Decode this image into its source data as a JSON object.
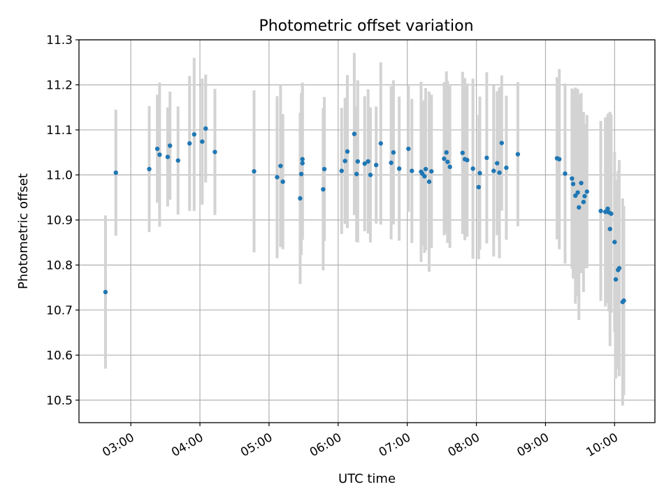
{
  "chart_data": {
    "type": "scatter",
    "title": "Photometric offset variation",
    "xlabel": "UTC time",
    "ylabel": "Photometric offset",
    "ylim": [
      10.45,
      11.3
    ],
    "xlim": [
      "02:15",
      "10:35"
    ],
    "yticks": [
      "10.5",
      "10.6",
      "10.7",
      "10.8",
      "10.9",
      "11.0",
      "11.1",
      "11.2",
      "11.3"
    ],
    "xticks": [
      "03:00",
      "04:00",
      "05:00",
      "06:00",
      "07:00",
      "08:00",
      "09:00",
      "10:00"
    ],
    "grid": true,
    "colors": {
      "points": "#1f77b4",
      "errorbars": "#d3d3d3",
      "grid": "#b0b0b0"
    },
    "series": [
      {
        "x": [
          "02:38",
          "02:47",
          "03:16",
          "03:23",
          "03:25",
          "03:32",
          "03:34",
          "03:41",
          "03:51",
          "03:55",
          "04:02",
          "04:05",
          "04:13",
          "04:47",
          "05:07",
          "05:10",
          "05:12",
          "05:27",
          "05:28",
          "05:29",
          "05:29",
          "05:47",
          "05:48",
          "06:03",
          "06:06",
          "06:08",
          "06:14",
          "06:16",
          "06:17",
          "06:23",
          "06:26",
          "06:28",
          "06:33",
          "06:37",
          "06:46",
          "06:48",
          "06:53",
          "07:01",
          "07:04",
          "07:12",
          "07:13",
          "07:15",
          "07:16",
          "07:19",
          "07:21",
          "07:32",
          "07:34",
          "07:35",
          "07:37",
          "07:48",
          "07:50",
          "07:52",
          "07:57",
          "08:02",
          "08:03",
          "08:09",
          "08:15",
          "08:18",
          "08:20",
          "08:22",
          "08:26",
          "08:36",
          "09:10",
          "09:12",
          "09:17",
          "09:23",
          "09:24",
          "09:26",
          "09:28",
          "09:29",
          "09:31",
          "09:33",
          "09:34",
          "09:36",
          "09:48",
          "09:52",
          "09:54",
          "09:55",
          "09:56",
          "09:57",
          "10:00",
          "10:01",
          "10:03",
          "10:04",
          "10:07",
          "10:08"
        ],
        "y": [
          10.74,
          11.005,
          11.013,
          11.058,
          11.045,
          11.04,
          11.065,
          11.032,
          11.07,
          11.09,
          11.074,
          11.103,
          11.051,
          11.008,
          10.995,
          11.02,
          10.985,
          10.948,
          11.002,
          11.026,
          11.035,
          10.968,
          11.013,
          11.009,
          11.031,
          11.052,
          11.091,
          11.002,
          11.03,
          11.025,
          11.03,
          11.0,
          11.022,
          11.07,
          11.027,
          11.05,
          11.014,
          11.058,
          11.009,
          11.007,
          11.003,
          10.997,
          11.013,
          10.985,
          11.008,
          11.036,
          11.05,
          11.029,
          11.018,
          11.049,
          11.035,
          11.033,
          11.014,
          10.973,
          11.004,
          11.038,
          11.009,
          11.026,
          11.005,
          11.071,
          11.016,
          11.046,
          11.037,
          11.035,
          11.003,
          10.992,
          10.98,
          10.954,
          10.961,
          10.928,
          10.982,
          10.94,
          10.953,
          10.963,
          10.92,
          10.918,
          10.925,
          10.917,
          10.88,
          10.914,
          10.851,
          10.768,
          10.789,
          10.793,
          10.718,
          10.721
        ],
        "err": [
          0.17,
          0.14,
          0.14,
          0.12,
          0.16,
          0.11,
          0.12,
          0.12,
          0.15,
          0.17,
          0.14,
          0.12,
          0.14,
          0.18,
          0.18,
          0.18,
          0.15,
          0.19,
          0.18,
          0.17,
          0.17,
          0.18,
          0.16,
          0.14,
          0.14,
          0.17,
          0.18,
          0.15,
          0.18,
          0.15,
          0.16,
          0.15,
          0.13,
          0.18,
          0.17,
          0.16,
          0.16,
          0.14,
          0.16,
          0.2,
          0.16,
          0.17,
          0.18,
          0.2,
          0.17,
          0.17,
          0.18,
          0.18,
          0.18,
          0.18,
          0.18,
          0.17,
          0.2,
          0.16,
          0.17,
          0.19,
          0.19,
          0.16,
          0.19,
          0.15,
          0.16,
          0.16,
          0.18,
          0.2,
          0.2,
          0.2,
          0.21,
          0.24,
          0.23,
          0.25,
          0.2,
          0.2,
          0.16,
          0.17,
          0.2,
          0.21,
          0.21,
          0.22,
          0.26,
          0.22,
          0.2,
          0.22,
          0.22,
          0.24,
          0.23,
          0.21
        ]
      }
    ]
  }
}
